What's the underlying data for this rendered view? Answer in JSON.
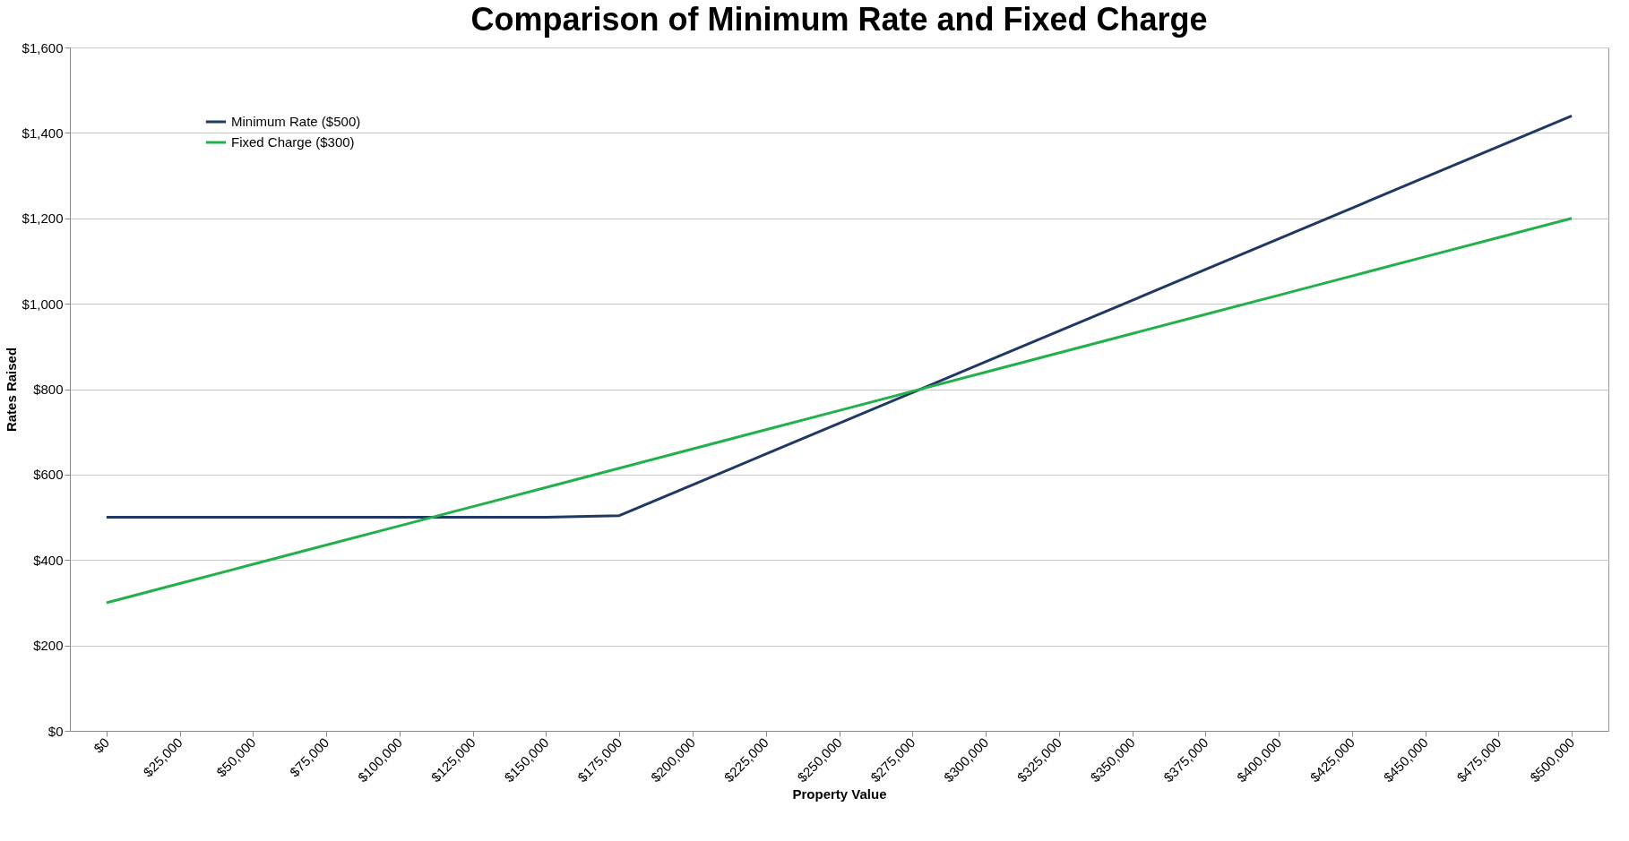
{
  "chart_data": {
    "type": "line",
    "title": "Comparison of Minimum Rate and Fixed Charge",
    "xlabel": "Property Value",
    "ylabel": "Rates Raised",
    "categories": [
      "$0",
      "$25,000",
      "$50,000",
      "$75,000",
      "$100,000",
      "$125,000",
      "$150,000",
      "$175,000",
      "$200,000",
      "$225,000",
      "$250,000",
      "$275,000",
      "$300,000",
      "$325,000",
      "$350,000",
      "$375,000",
      "$400,000",
      "$425,000",
      "$450,000",
      "$475,000",
      "$500,000"
    ],
    "series": [
      {
        "name": "Minimum Rate ($500)",
        "color": "#1f3864",
        "values": [
          500,
          500,
          500,
          500,
          500,
          500,
          500,
          504,
          576,
          648,
          720,
          792,
          864,
          936,
          1008,
          1080,
          1152,
          1224,
          1296,
          1368,
          1440
        ]
      },
      {
        "name": "Fixed Charge ($300)",
        "color": "#22b04b",
        "values": [
          300,
          345,
          390,
          435,
          480,
          525,
          570,
          615,
          660,
          705,
          750,
          795,
          840,
          885,
          930,
          975,
          1020,
          1065,
          1110,
          1155,
          1200
        ]
      }
    ],
    "ylim": [
      0,
      1600
    ],
    "yticks": [
      {
        "value": 0,
        "label": "$0"
      },
      {
        "value": 200,
        "label": "$200"
      },
      {
        "value": 400,
        "label": "$400"
      },
      {
        "value": 600,
        "label": "$600"
      },
      {
        "value": 800,
        "label": "$800"
      },
      {
        "value": 1000,
        "label": "$1,000"
      },
      {
        "value": 1200,
        "label": "$1,200"
      },
      {
        "value": 1400,
        "label": "$1,400"
      },
      {
        "value": 1600,
        "label": "$1,600"
      }
    ],
    "grid": "y",
    "legend": "top left",
    "marker": "none",
    "line_style": "solid"
  }
}
